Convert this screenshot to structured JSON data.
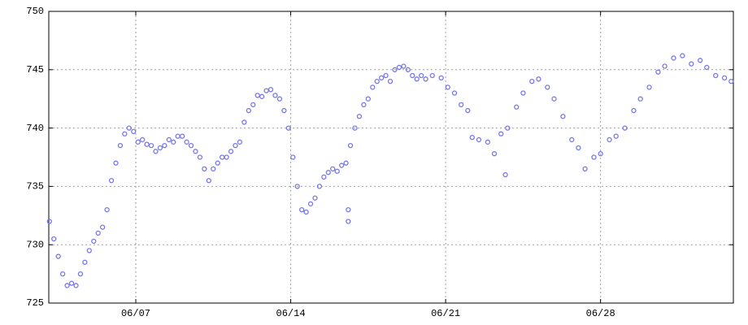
{
  "chart_data": {
    "type": "scatter",
    "xlim": [
      3.07,
      34.0
    ],
    "ylim": [
      725,
      750
    ],
    "xticks": [
      {
        "value": 7,
        "label": "06/07"
      },
      {
        "value": 14,
        "label": "06/14"
      },
      {
        "value": 21,
        "label": "06/21"
      },
      {
        "value": 28,
        "label": "06/28"
      }
    ],
    "yticks": [
      725,
      730,
      735,
      740,
      745,
      750
    ],
    "grid": true,
    "color": "#7777ee",
    "x": [
      3.1,
      3.3,
      3.5,
      3.7,
      3.9,
      4.1,
      4.3,
      4.5,
      4.7,
      4.9,
      5.1,
      5.3,
      5.5,
      5.7,
      5.9,
      6.1,
      6.3,
      6.5,
      6.7,
      6.9,
      7.1,
      7.3,
      7.5,
      7.7,
      7.9,
      8.1,
      8.3,
      8.5,
      8.7,
      8.9,
      9.1,
      9.3,
      9.5,
      9.7,
      9.9,
      10.1,
      10.3,
      10.5,
      10.7,
      10.9,
      11.1,
      11.3,
      11.5,
      11.7,
      11.9,
      12.1,
      12.3,
      12.5,
      12.7,
      12.9,
      13.1,
      13.3,
      13.5,
      13.7,
      13.9,
      14.1,
      14.3,
      14.5,
      14.7,
      14.9,
      15.1,
      15.3,
      15.5,
      15.7,
      15.9,
      16.1,
      16.3,
      16.5,
      16.6,
      16.6,
      16.7,
      16.9,
      17.1,
      17.3,
      17.5,
      17.7,
      17.9,
      18.1,
      18.3,
      18.5,
      18.7,
      18.9,
      19.1,
      19.3,
      19.5,
      19.7,
      19.9,
      20.1,
      20.4,
      20.8,
      21.1,
      21.4,
      21.7,
      22.0,
      22.2,
      22.5,
      22.9,
      23.2,
      23.5,
      23.7,
      23.8,
      24.2,
      24.5,
      24.9,
      25.2,
      25.6,
      25.9,
      26.3,
      26.7,
      27.0,
      27.3,
      27.7,
      28.0,
      28.4,
      28.7,
      29.1,
      29.5,
      29.8,
      30.2,
      30.6,
      30.9,
      31.3,
      31.7,
      32.1,
      32.5,
      32.8,
      33.2,
      33.6,
      33.9
    ],
    "values": [
      732,
      730.5,
      729,
      727.5,
      726.5,
      726.7,
      726.5,
      727.5,
      728.5,
      729.5,
      730.3,
      731,
      731.5,
      733,
      735.5,
      737,
      738.5,
      739.5,
      740,
      739.7,
      738.8,
      739,
      738.6,
      738.5,
      738,
      738.3,
      738.5,
      739,
      738.8,
      739.3,
      739.3,
      738.8,
      738.5,
      738,
      737.5,
      736.5,
      735.5,
      736.5,
      737,
      737.5,
      737.5,
      738,
      738.5,
      738.8,
      740.5,
      741.5,
      742,
      742.8,
      742.7,
      743.2,
      743.3,
      742.8,
      742.5,
      741.5,
      740,
      737.5,
      735,
      733,
      732.8,
      733.5,
      734,
      735,
      735.8,
      736.2,
      736.5,
      736.3,
      736.8,
      737,
      733,
      732,
      738.5,
      740,
      741,
      742,
      742.5,
      743.5,
      744,
      744.3,
      744.5,
      744,
      745,
      745.2,
      745.3,
      745,
      744.5,
      744.2,
      744.5,
      744.2,
      744.5,
      744.3,
      743.5,
      743,
      742,
      741.5,
      739.2,
      739,
      738.8,
      737.8,
      739.5,
      736,
      740,
      741.8,
      743,
      744,
      744.2,
      743.5,
      742.5,
      741,
      739,
      738.3,
      736.5,
      737.5,
      737.8,
      739,
      739.3,
      740,
      741.5,
      742.5,
      743.5,
      744.8,
      745.3,
      746,
      746.2,
      745.5,
      745.8,
      745.2,
      744.5,
      744.3,
      744
    ]
  }
}
